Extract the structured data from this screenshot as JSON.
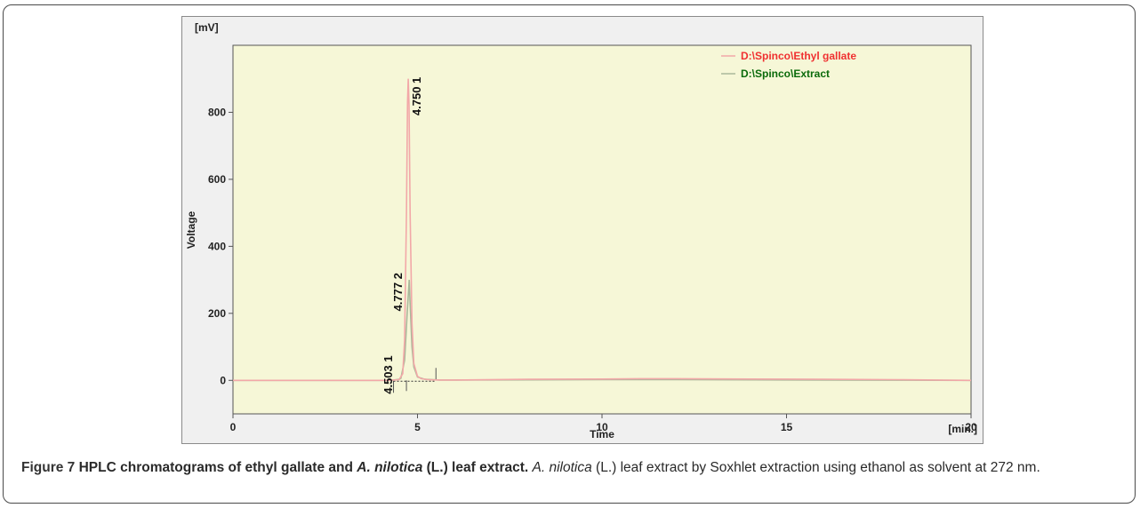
{
  "figure": {
    "label": "Figure 7",
    "title_part1": "HPLC chromatograms of ethyl gallate and ",
    "title_species": "A. nilotica",
    "title_part2": " (L.) leaf extract.",
    "body_species": "A. nilotica",
    "body_text": " (L.) leaf extract by Soxhlet extraction using ethanol as solvent at 272 nm."
  },
  "chart_data": {
    "type": "line",
    "xlabel": "Time",
    "xunit": "[min.]",
    "ylabel": "Voltage",
    "yunit": "[mV]",
    "xlim": [
      0,
      20
    ],
    "ylim": [
      -100,
      1000
    ],
    "xticks": [
      0,
      5,
      10,
      15,
      20
    ],
    "yticks": [
      0,
      200,
      400,
      600,
      800
    ],
    "grid": false,
    "legend_position": "top-right",
    "colors": {
      "plot_bg": "#f6f7d7",
      "frame_bg": "#f0f0f0"
    },
    "series": [
      {
        "name": "D:\\Spinco\\Ethyl gallate",
        "color": "#f03030",
        "line_color": "#f2a8a8",
        "x": [
          0,
          4.2,
          4.5,
          4.6,
          4.65,
          4.7,
          4.73,
          4.75,
          4.77,
          4.8,
          4.85,
          4.9,
          5.0,
          5.1,
          5.3,
          5.6,
          6,
          8,
          10,
          11,
          12,
          14,
          16,
          18,
          20
        ],
        "y": [
          0,
          0,
          2,
          20,
          120,
          500,
          830,
          900,
          820,
          500,
          170,
          50,
          12,
          5,
          2,
          1,
          1,
          3,
          4,
          5,
          5,
          4,
          3,
          2,
          0
        ]
      },
      {
        "name": "D:\\Spinco\\Extract",
        "color": "#0a6a0a",
        "line_color": "#aab89a",
        "x": [
          0,
          4.3,
          4.5,
          4.55,
          4.65,
          4.72,
          4.777,
          4.8,
          4.85,
          4.9,
          5.0,
          5.2,
          5.6,
          6,
          10,
          12,
          20
        ],
        "y": [
          0,
          0,
          3,
          6,
          60,
          200,
          300,
          230,
          100,
          40,
          10,
          3,
          1,
          1,
          2,
          2,
          0
        ]
      }
    ],
    "peak_labels": [
      {
        "time": "4.750",
        "number": "1",
        "x": 4.75,
        "y": 900
      },
      {
        "time": "4.777",
        "number": "2",
        "x": 4.777,
        "y": 300
      },
      {
        "time": "4.503",
        "number": "1",
        "x": 4.503,
        "y": 5
      }
    ]
  }
}
